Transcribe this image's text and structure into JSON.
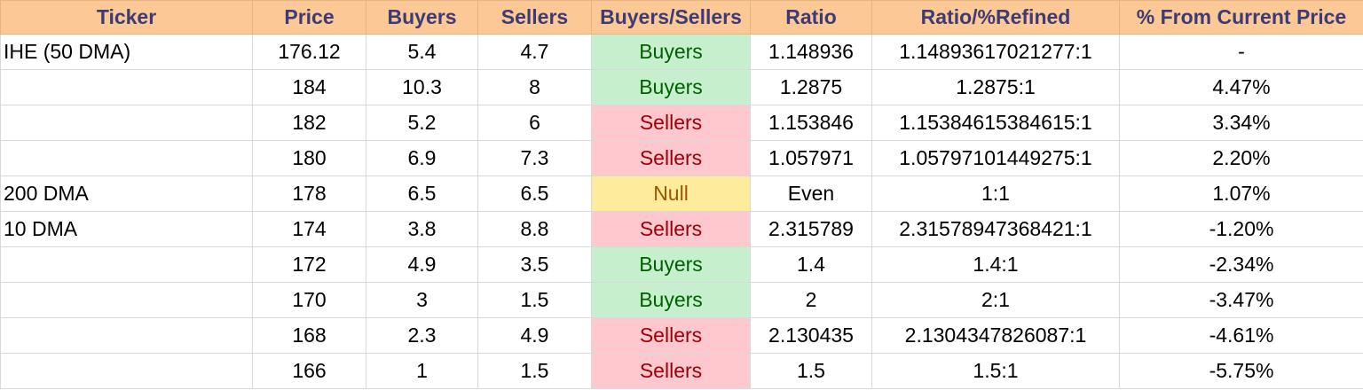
{
  "colors": {
    "header_bg": "#fbc896",
    "header_text": "#3d3b75",
    "buyers_bg": "#c6efce",
    "buyers_text": "#006100",
    "sellers_bg": "#ffc7ce",
    "sellers_text": "#9c0006",
    "null_bg": "#ffeb9c",
    "null_text": "#9c5700"
  },
  "table": {
    "columns": [
      "Ticker",
      "Price",
      "Buyers",
      "Sellers",
      "Buyers/Sellers",
      "Ratio",
      "Ratio/%Refined",
      "% From Current Price"
    ],
    "rows": [
      {
        "ticker": "IHE (50 DMA)",
        "price": "176.12",
        "buyers": "5.4",
        "sellers": "4.7",
        "signal": "Buyers",
        "ratio": "1.148936",
        "refined": "1.14893617021277:1",
        "pct": "-"
      },
      {
        "ticker": "",
        "price": "184",
        "buyers": "10.3",
        "sellers": "8",
        "signal": "Buyers",
        "ratio": "1.2875",
        "refined": "1.2875:1",
        "pct": "4.47%"
      },
      {
        "ticker": "",
        "price": "182",
        "buyers": "5.2",
        "sellers": "6",
        "signal": "Sellers",
        "ratio": "1.153846",
        "refined": "1.15384615384615:1",
        "pct": "3.34%"
      },
      {
        "ticker": "",
        "price": "180",
        "buyers": "6.9",
        "sellers": "7.3",
        "signal": "Sellers",
        "ratio": "1.057971",
        "refined": "1.05797101449275:1",
        "pct": "2.20%"
      },
      {
        "ticker": "200 DMA",
        "price": "178",
        "buyers": "6.5",
        "sellers": "6.5",
        "signal": "Null",
        "ratio": "Even",
        "refined": "1:1",
        "pct": "1.07%"
      },
      {
        "ticker": "10 DMA",
        "price": "174",
        "buyers": "3.8",
        "sellers": "8.8",
        "signal": "Sellers",
        "ratio": "2.315789",
        "refined": "2.31578947368421:1",
        "pct": "-1.20%"
      },
      {
        "ticker": "",
        "price": "172",
        "buyers": "4.9",
        "sellers": "3.5",
        "signal": "Buyers",
        "ratio": "1.4",
        "refined": "1.4:1",
        "pct": "-2.34%"
      },
      {
        "ticker": "",
        "price": "170",
        "buyers": "3",
        "sellers": "1.5",
        "signal": "Buyers",
        "ratio": "2",
        "refined": "2:1",
        "pct": "-3.47%"
      },
      {
        "ticker": "",
        "price": "168",
        "buyers": "2.3",
        "sellers": "4.9",
        "signal": "Sellers",
        "ratio": "2.130435",
        "refined": "2.1304347826087:1",
        "pct": "-4.61%"
      },
      {
        "ticker": "",
        "price": "166",
        "buyers": "1",
        "sellers": "1.5",
        "signal": "Sellers",
        "ratio": "1.5",
        "refined": "1.5:1",
        "pct": "-5.75%"
      }
    ]
  }
}
